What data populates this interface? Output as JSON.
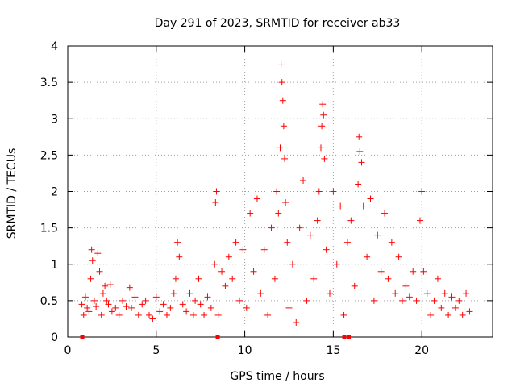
{
  "chart_data": {
    "type": "scatter",
    "title": "Day 291 of 2023, SRMTID for receiver ab33",
    "xlabel": "GPS time / hours",
    "ylabel": "SRMTID / TECUs",
    "xlim": [
      0,
      24
    ],
    "ylim": [
      0,
      4
    ],
    "xticks": [
      0,
      5,
      10,
      15,
      20
    ],
    "yticks": [
      0,
      0.5,
      1,
      1.5,
      2,
      2.5,
      3,
      3.5,
      4
    ],
    "xtick_labels": [
      "0",
      "5",
      "10",
      "15",
      "20"
    ],
    "ytick_labels": [
      "0",
      "0.5",
      "1",
      "1.5",
      "2",
      "2.5",
      "3",
      "3.5",
      "4"
    ],
    "grid": true,
    "marker": "+",
    "color": "#ff0000",
    "series": [
      {
        "name": "SRMTID",
        "points": [
          [
            0.8,
            0.45
          ],
          [
            0.9,
            0.3
          ],
          [
            1.0,
            0.55
          ],
          [
            1.1,
            0.4
          ],
          [
            1.2,
            0.35
          ],
          [
            1.3,
            0.8
          ],
          [
            1.35,
            1.2
          ],
          [
            1.4,
            1.05
          ],
          [
            1.5,
            0.5
          ],
          [
            1.6,
            0.42
          ],
          [
            1.7,
            1.15
          ],
          [
            1.8,
            0.9
          ],
          [
            1.9,
            0.3
          ],
          [
            2.0,
            0.6
          ],
          [
            2.1,
            0.7
          ],
          [
            2.2,
            0.5
          ],
          [
            2.3,
            0.45
          ],
          [
            2.4,
            0.72
          ],
          [
            2.5,
            0.35
          ],
          [
            2.7,
            0.4
          ],
          [
            2.9,
            0.3
          ],
          [
            3.1,
            0.5
          ],
          [
            3.3,
            0.42
          ],
          [
            3.5,
            0.68
          ],
          [
            3.6,
            0.4
          ],
          [
            3.8,
            0.55
          ],
          [
            4.0,
            0.3
          ],
          [
            4.2,
            0.45
          ],
          [
            4.4,
            0.5
          ],
          [
            4.6,
            0.3
          ],
          [
            4.8,
            0.25
          ],
          [
            5.0,
            0.55
          ],
          [
            5.2,
            0.35
          ],
          [
            5.4,
            0.45
          ],
          [
            5.6,
            0.3
          ],
          [
            5.8,
            0.4
          ],
          [
            6.0,
            0.6
          ],
          [
            6.1,
            0.8
          ],
          [
            6.2,
            1.3
          ],
          [
            6.3,
            1.1
          ],
          [
            6.5,
            0.45
          ],
          [
            6.7,
            0.35
          ],
          [
            6.9,
            0.6
          ],
          [
            7.1,
            0.3
          ],
          [
            7.2,
            0.5
          ],
          [
            7.4,
            0.8
          ],
          [
            7.5,
            0.45
          ],
          [
            7.7,
            0.3
          ],
          [
            7.9,
            0.55
          ],
          [
            8.1,
            0.4
          ],
          [
            8.3,
            1.0
          ],
          [
            8.35,
            1.85
          ],
          [
            8.4,
            2.0
          ],
          [
            8.5,
            0.3
          ],
          [
            8.7,
            0.9
          ],
          [
            8.9,
            0.7
          ],
          [
            9.1,
            1.1
          ],
          [
            9.3,
            0.8
          ],
          [
            9.5,
            1.3
          ],
          [
            9.7,
            0.5
          ],
          [
            9.9,
            1.2
          ],
          [
            10.1,
            0.4
          ],
          [
            10.3,
            1.7
          ],
          [
            10.5,
            0.9
          ],
          [
            10.7,
            1.9
          ],
          [
            10.9,
            0.6
          ],
          [
            11.1,
            1.2
          ],
          [
            11.3,
            0.3
          ],
          [
            11.5,
            1.5
          ],
          [
            11.7,
            0.8
          ],
          [
            11.8,
            2.0
          ],
          [
            11.9,
            1.7
          ],
          [
            12.0,
            2.6
          ],
          [
            12.05,
            3.75
          ],
          [
            12.1,
            3.5
          ],
          [
            12.15,
            3.25
          ],
          [
            12.2,
            2.9
          ],
          [
            12.25,
            2.45
          ],
          [
            12.3,
            1.85
          ],
          [
            12.4,
            1.3
          ],
          [
            12.5,
            0.4
          ],
          [
            12.7,
            1.0
          ],
          [
            12.9,
            0.2
          ],
          [
            13.1,
            1.5
          ],
          [
            13.3,
            2.15
          ],
          [
            13.5,
            0.5
          ],
          [
            13.7,
            1.4
          ],
          [
            13.9,
            0.8
          ],
          [
            14.1,
            1.6
          ],
          [
            14.2,
            2.0
          ],
          [
            14.3,
            2.6
          ],
          [
            14.35,
            2.9
          ],
          [
            14.4,
            3.2
          ],
          [
            14.45,
            3.05
          ],
          [
            14.5,
            2.45
          ],
          [
            14.6,
            1.2
          ],
          [
            14.8,
            0.6
          ],
          [
            15.0,
            2.0
          ],
          [
            15.2,
            1.0
          ],
          [
            15.4,
            1.8
          ],
          [
            15.6,
            0.3
          ],
          [
            15.8,
            1.3
          ],
          [
            16.0,
            1.6
          ],
          [
            16.2,
            0.7
          ],
          [
            16.4,
            2.1
          ],
          [
            16.45,
            2.75
          ],
          [
            16.5,
            2.55
          ],
          [
            16.6,
            2.4
          ],
          [
            16.7,
            1.8
          ],
          [
            16.9,
            1.1
          ],
          [
            17.1,
            1.9
          ],
          [
            17.3,
            0.5
          ],
          [
            17.5,
            1.4
          ],
          [
            17.7,
            0.9
          ],
          [
            17.9,
            1.7
          ],
          [
            18.1,
            0.8
          ],
          [
            18.3,
            1.3
          ],
          [
            18.5,
            0.6
          ],
          [
            18.7,
            1.1
          ],
          [
            18.9,
            0.5
          ],
          [
            19.1,
            0.7
          ],
          [
            19.3,
            0.55
          ],
          [
            19.5,
            0.9
          ],
          [
            19.7,
            0.5
          ],
          [
            19.9,
            1.6
          ],
          [
            20.0,
            2.0
          ],
          [
            20.1,
            0.9
          ],
          [
            20.3,
            0.6
          ],
          [
            20.5,
            0.3
          ],
          [
            20.7,
            0.5
          ],
          [
            20.9,
            0.8
          ],
          [
            21.1,
            0.4
          ],
          [
            21.3,
            0.6
          ],
          [
            21.5,
            0.3
          ],
          [
            21.7,
            0.55
          ],
          [
            21.9,
            0.4
          ],
          [
            22.1,
            0.5
          ],
          [
            22.3,
            0.3
          ],
          [
            22.5,
            0.6
          ],
          [
            22.7,
            0.35
          ]
        ]
      }
    ],
    "gap_markers": [
      0.8,
      8.45,
      15.6,
      15.85
    ]
  }
}
